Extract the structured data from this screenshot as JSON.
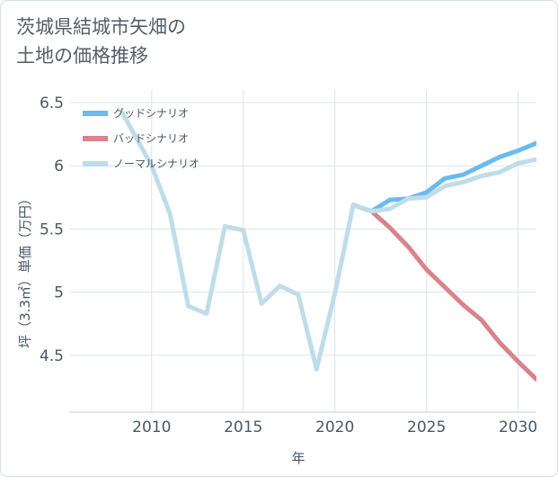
{
  "title": {
    "line1": "茨城県結城市矢畑の",
    "line2": "土地の価格推移"
  },
  "chart_data": {
    "type": "line",
    "title": "茨城県結城市矢畑の土地の価格推移",
    "xlabel": "年",
    "ylabel": "坪（3.3㎡）単価（万円）",
    "xlim": [
      2005.5,
      2031
    ],
    "ylim": [
      4.05,
      6.6
    ],
    "xticks": [
      2010,
      2015,
      2020,
      2025,
      2030
    ],
    "xtick_labels": [
      "2010",
      "2015",
      "2020",
      "2025",
      "2030"
    ],
    "yticks": [
      4.5,
      5,
      5.5,
      6,
      6.5
    ],
    "ytick_labels": [
      "4.5",
      "5",
      "5.5",
      "6",
      "6.5"
    ],
    "grid": true,
    "legend_position": "top-left",
    "series": [
      {
        "name": "グッドシナリオ",
        "color": "#6bbaf0",
        "x": [
          2021,
          2022,
          2023,
          2024,
          2025,
          2026,
          2027,
          2028,
          2029,
          2030,
          2031
        ],
        "values": [
          5.69,
          5.64,
          5.73,
          5.74,
          5.79,
          5.9,
          5.93,
          6.0,
          6.07,
          6.12,
          6.18
        ]
      },
      {
        "name": "バッドシナリオ",
        "color": "#d9838a",
        "x": [
          2021,
          2022,
          2023,
          2024,
          2025,
          2026,
          2027,
          2028,
          2029,
          2030,
          2031
        ],
        "values": [
          5.69,
          5.64,
          5.51,
          5.36,
          5.18,
          5.04,
          4.9,
          4.78,
          4.6,
          4.45,
          4.31
        ]
      },
      {
        "name": "ノーマルシナリオ",
        "color": "#bfdde9",
        "x": [
          2008.4,
          2010,
          2011,
          2012,
          2013,
          2014,
          2015,
          2016,
          2017,
          2018,
          2019,
          2020,
          2021,
          2022,
          2023,
          2024,
          2025,
          2026,
          2027,
          2028,
          2029,
          2030,
          2031
        ],
        "values": [
          6.42,
          6.0,
          5.62,
          4.89,
          4.83,
          5.52,
          5.49,
          4.91,
          5.05,
          4.98,
          4.39,
          4.99,
          5.69,
          5.64,
          5.66,
          5.74,
          5.75,
          5.84,
          5.87,
          5.92,
          5.95,
          6.02,
          6.05
        ]
      }
    ]
  }
}
